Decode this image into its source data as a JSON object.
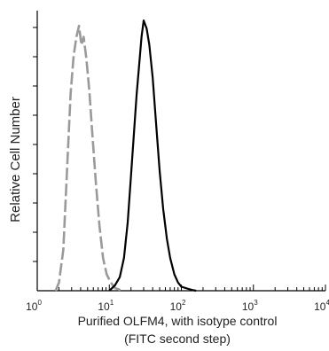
{
  "chart_data": {
    "type": "line",
    "title": "",
    "xlabel": "Purified  OLFM4,  with isotype control",
    "xlabel_line2": "(FITC second step)",
    "ylabel": "Relative Cell Number",
    "x_scale": "log",
    "xlim": [
      1,
      10000
    ],
    "ylim": [
      0,
      100
    ],
    "x_ticks": [
      {
        "base": "10",
        "exp": "0",
        "value": 1
      },
      {
        "base": "10",
        "exp": "1",
        "value": 10
      },
      {
        "base": "10",
        "exp": "2",
        "value": 100
      },
      {
        "base": "10",
        "exp": "3",
        "value": 1000
      },
      {
        "base": "10",
        "exp": "4",
        "value": 10000
      }
    ],
    "grid": false,
    "legend": "none",
    "series": [
      {
        "color": "#9a9a9a",
        "style": "dashed",
        "x": [
          1.8,
          2.0,
          2.3,
          2.6,
          2.9,
          3.2,
          3.5,
          3.8,
          4.1,
          4.4,
          4.8,
          5.3,
          5.8,
          6.5,
          7.3,
          8.2,
          9.2,
          10.5,
          12,
          13.5,
          15
        ],
        "y": [
          0,
          3,
          15,
          45,
          72,
          86,
          93,
          97,
          90,
          93,
          85,
          73,
          58,
          40,
          24,
          12,
          6,
          3,
          1,
          0.5,
          0
        ]
      },
      {
        "color": "#000000",
        "style": "solid",
        "x": [
          10,
          12,
          14,
          16,
          18,
          20,
          22,
          24,
          26,
          28,
          30,
          33,
          36,
          40,
          45,
          50,
          56,
          63,
          70,
          80,
          90,
          100,
          120,
          140,
          160
        ],
        "y": [
          0,
          2,
          5,
          12,
          25,
          42,
          58,
          72,
          83,
          93,
          99,
          96,
          90,
          78,
          60,
          44,
          30,
          19,
          12,
          6,
          3,
          1.5,
          0.8,
          0.3,
          0
        ]
      }
    ]
  }
}
